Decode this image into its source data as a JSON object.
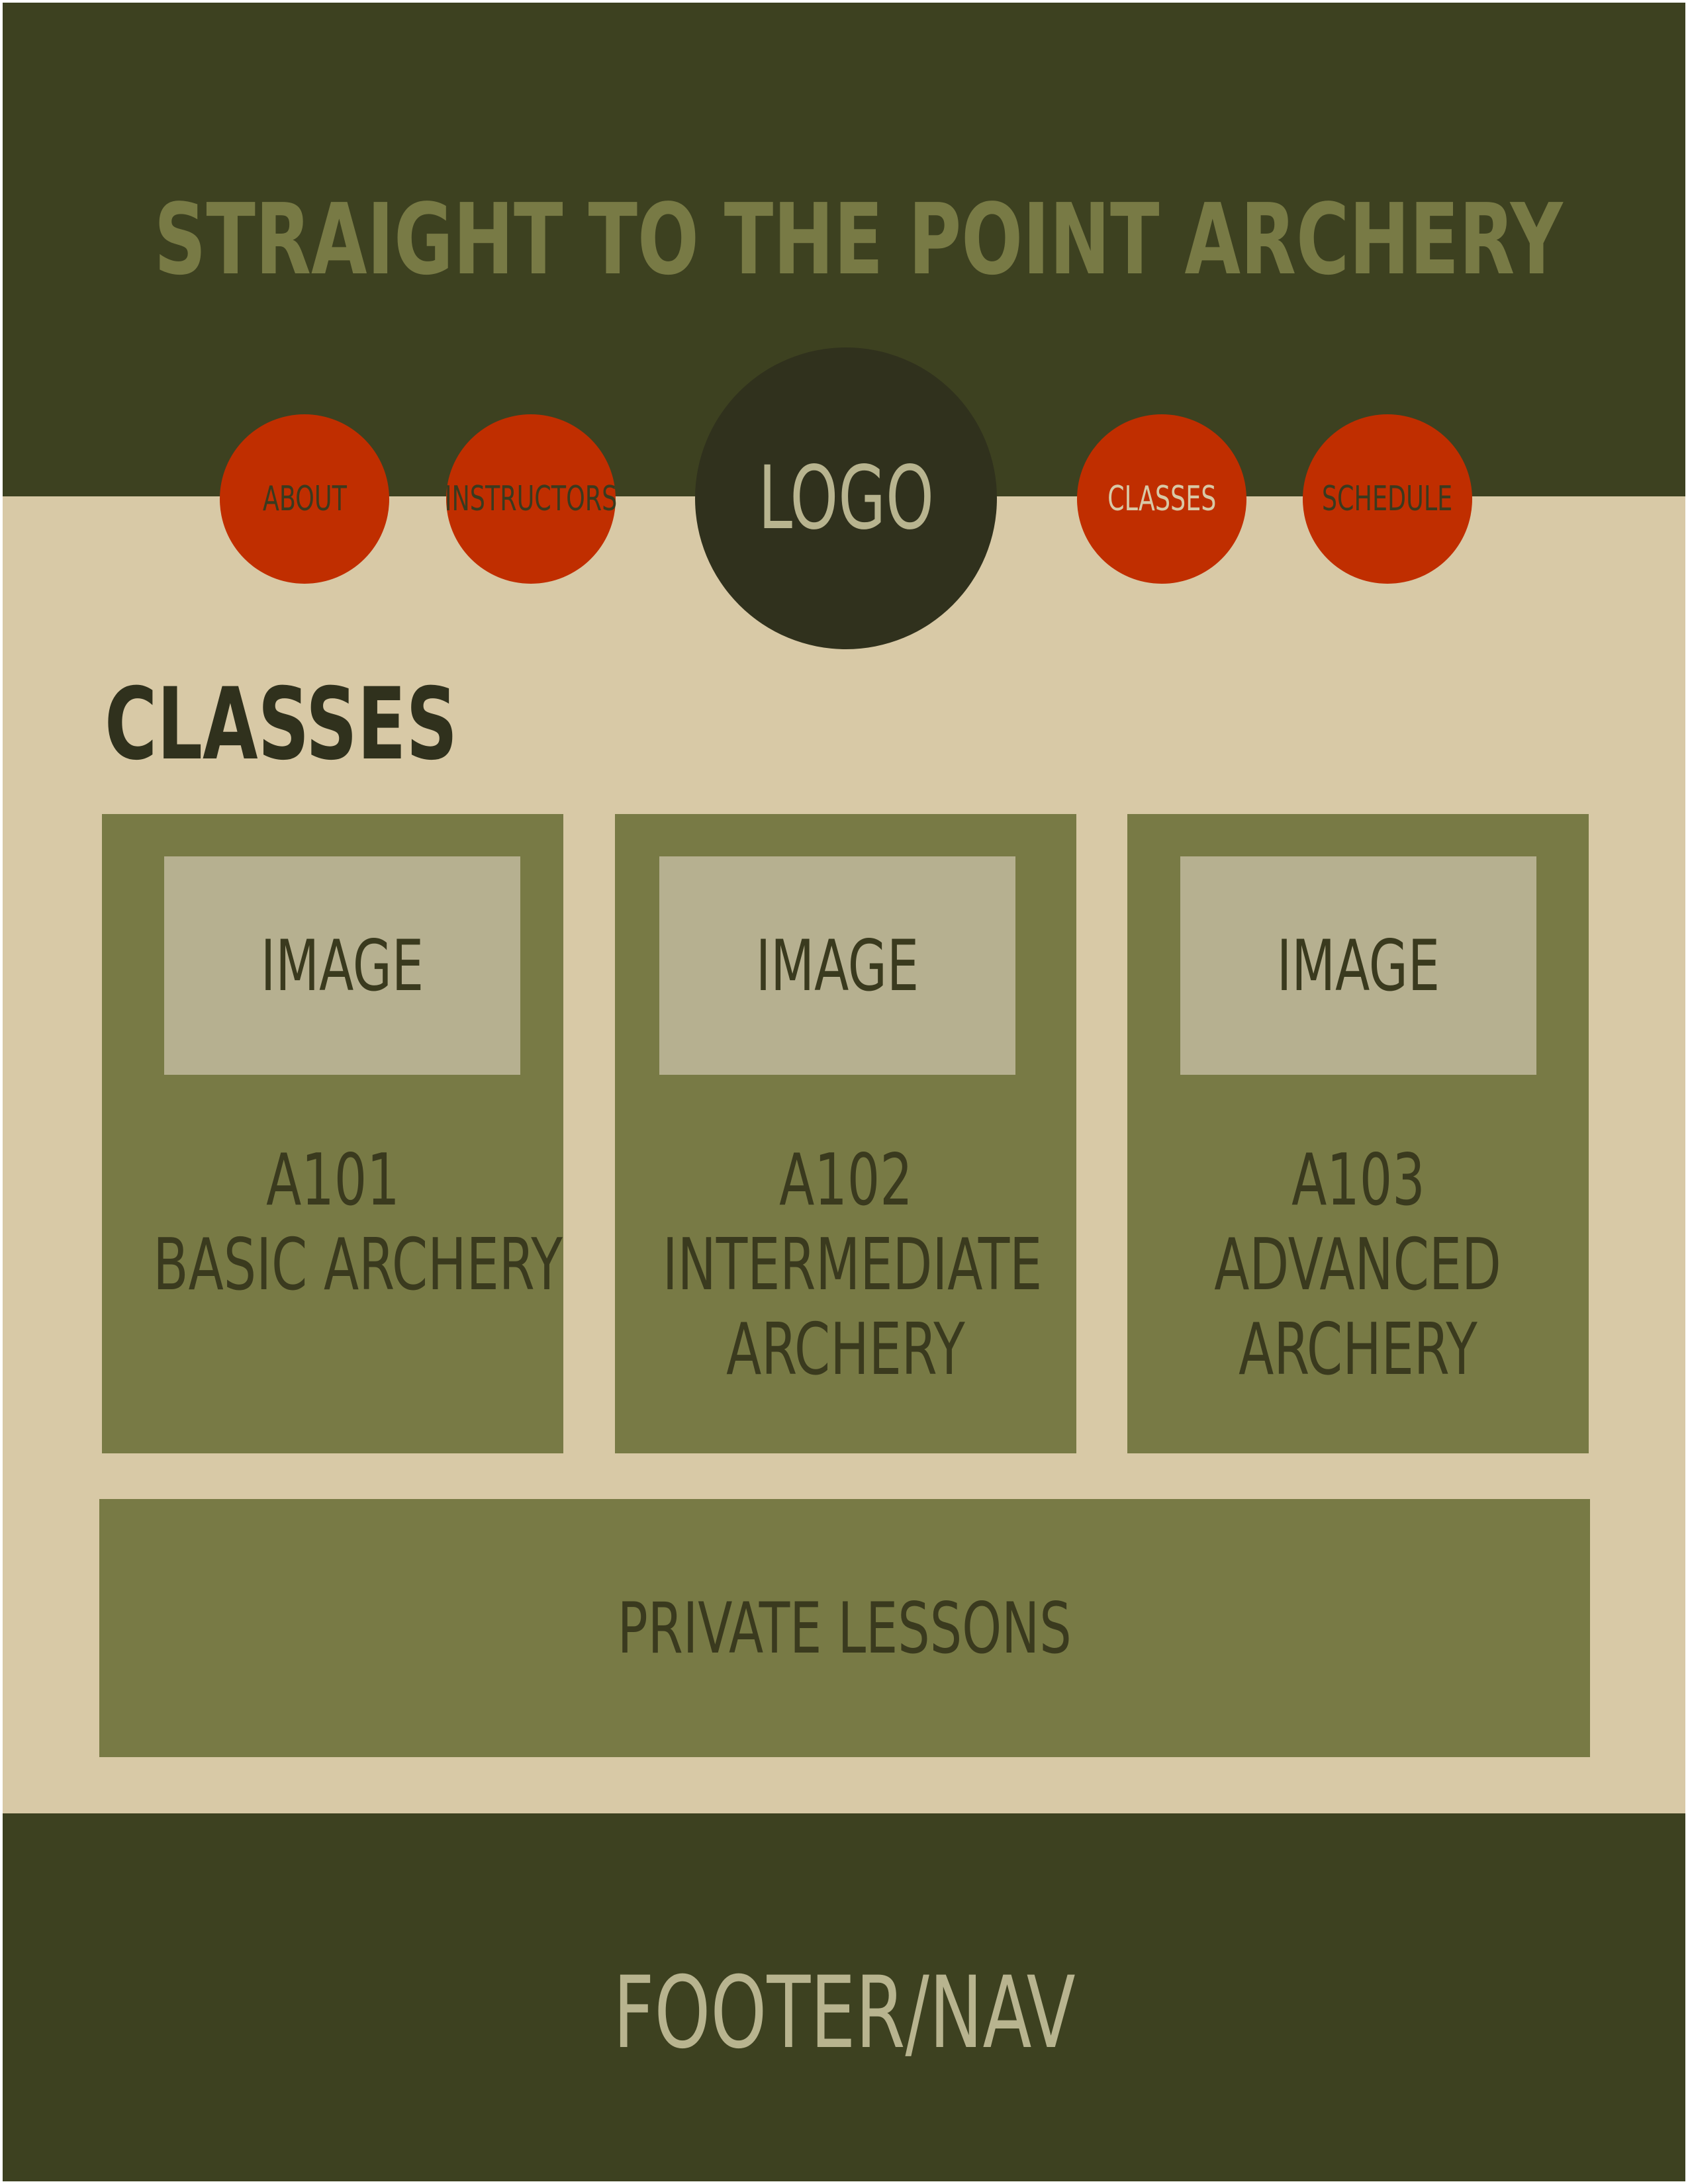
{
  "header": {
    "title": "STRAIGHT TO THE POINT ARCHERY"
  },
  "nav": {
    "items": [
      {
        "label": "ABOUT"
      },
      {
        "label": "INSTRUCTORS"
      },
      {
        "label": "CLASSES"
      },
      {
        "label": "SCHEDULE"
      }
    ],
    "logo_label": "LOGO"
  },
  "main": {
    "section_title": "CLASSES",
    "cards": [
      {
        "image_label": "IMAGE",
        "code": "A101",
        "name_lines": [
          "BASIC ARCHERY"
        ]
      },
      {
        "image_label": "IMAGE",
        "code": "A102",
        "name_lines": [
          "INTERMEDIATE",
          "ARCHERY"
        ]
      },
      {
        "image_label": "IMAGE",
        "code": "A103",
        "name_lines": [
          "ADVANCED",
          "ARCHERY"
        ]
      }
    ],
    "private_lessons_label": "PRIVATE LESSONS"
  },
  "footer": {
    "label": "FOOTER/NAV"
  },
  "colors": {
    "header_bg": "#3d4120",
    "page_bg": "#d8c9a6",
    "card_bg": "#787a45",
    "image_placeholder": "#b6b090",
    "nav_button": "#c02e00",
    "logo_bg": "#30311d"
  }
}
